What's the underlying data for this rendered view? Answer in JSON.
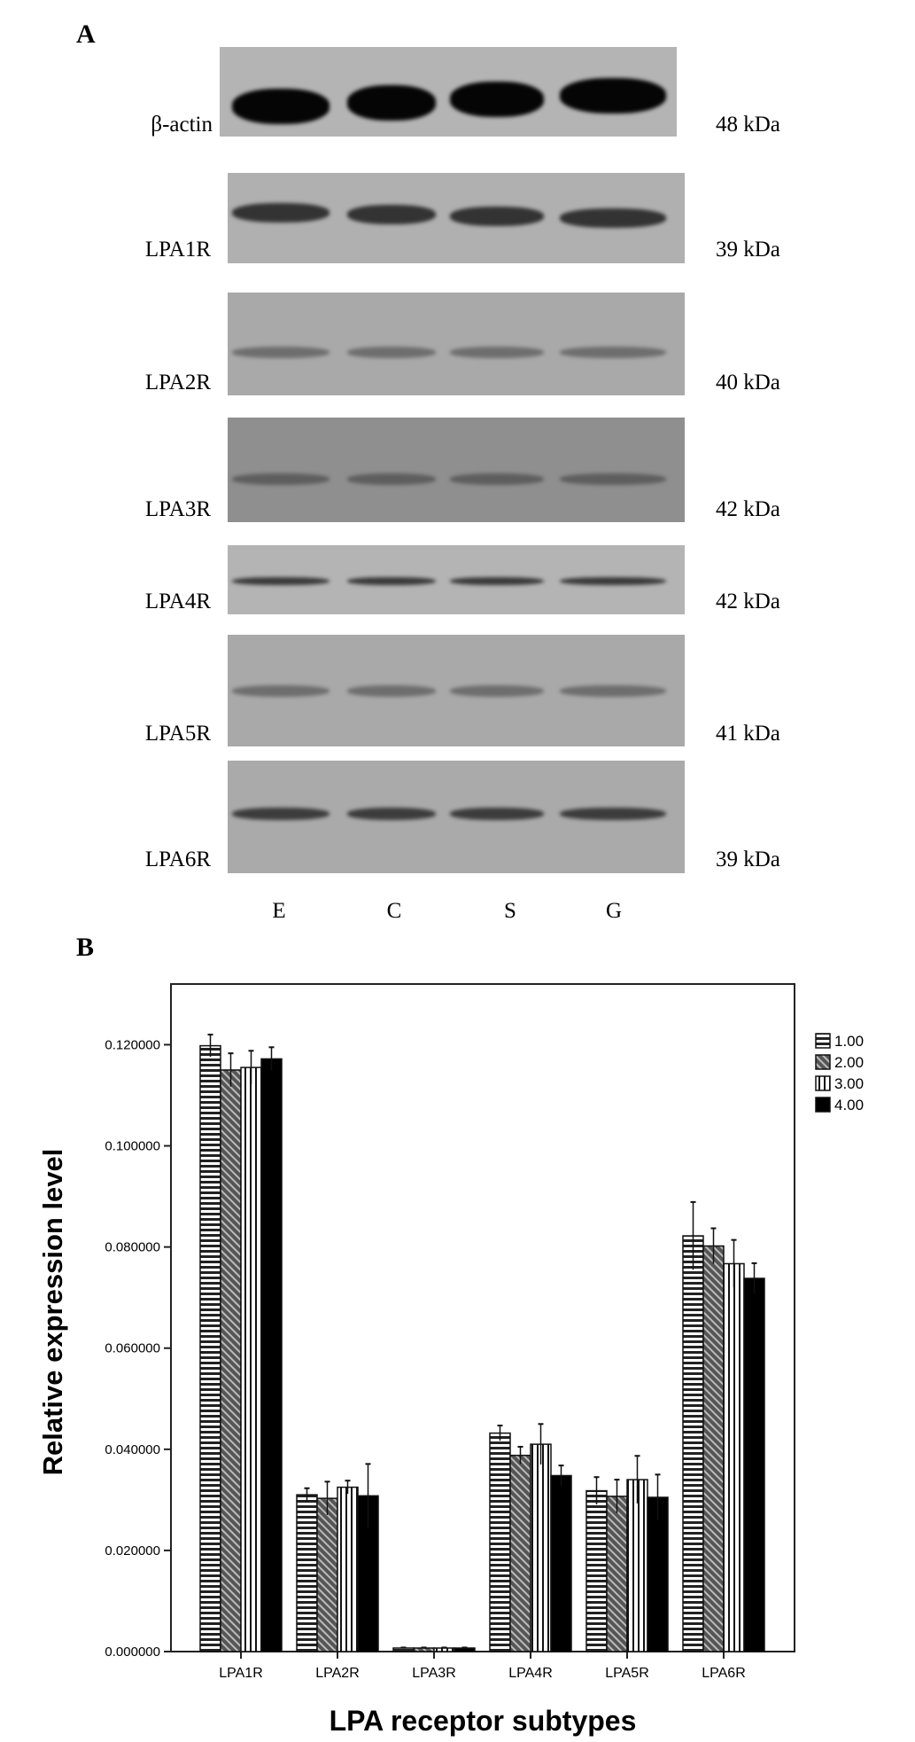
{
  "panel_a": {
    "letter": "A",
    "blots": [
      {
        "label": "β-actin",
        "kda": "48 kDa"
      },
      {
        "label": "LPA1R",
        "kda": "39 kDa"
      },
      {
        "label": "LPA2R",
        "kda": "40 kDa"
      },
      {
        "label": "LPA3R",
        "kda": "42 kDa"
      },
      {
        "label": "LPA4R",
        "kda": "42 kDa"
      },
      {
        "label": "LPA5R",
        "kda": "41 kDa"
      },
      {
        "label": "LPA6R",
        "kda": "39 kDa"
      }
    ],
    "lanes": [
      "E",
      "C",
      "S",
      "G"
    ]
  },
  "panel_b": {
    "letter": "B"
  },
  "chart_data": {
    "type": "bar",
    "title": "",
    "xlabel": "LPA receptor subtypes",
    "ylabel": "Relative expression level",
    "categories": [
      "LPA1R",
      "LPA2R",
      "LPA3R",
      "LPA4R",
      "LPA5R",
      "LPA6R"
    ],
    "ylim": [
      0,
      0.132
    ],
    "yticks": [
      "0.000000",
      "0.020000",
      "0.040000",
      "0.060000",
      "0.080000",
      "0.100000",
      "0.120000"
    ],
    "ytick_values": [
      0,
      0.02,
      0.04,
      0.06,
      0.08,
      0.1,
      0.12
    ],
    "grid": false,
    "legend_position": "right",
    "series": [
      {
        "name": "1.00",
        "pattern": "horizontal-lines",
        "values": [
          0.1198,
          0.031,
          0.0007,
          0.0432,
          0.0318,
          0.0822
        ],
        "errors": [
          0.0022,
          0.0013,
          0.0001,
          0.0015,
          0.0027,
          0.0067
        ]
      },
      {
        "name": "2.00",
        "pattern": "diagonal-hatch",
        "values": [
          0.115,
          0.0303,
          0.0007,
          0.0388,
          0.0307,
          0.0802
        ],
        "errors": [
          0.0033,
          0.0033,
          0.0001,
          0.0017,
          0.0033,
          0.0035
        ]
      },
      {
        "name": "3.00",
        "pattern": "vertical-lines",
        "values": [
          0.1155,
          0.0325,
          0.0007,
          0.041,
          0.034,
          0.0767
        ],
        "errors": [
          0.0033,
          0.0013,
          0.0001,
          0.004,
          0.0047,
          0.0047
        ]
      },
      {
        "name": "4.00",
        "pattern": "solid-black",
        "values": [
          0.1172,
          0.0308,
          0.0007,
          0.0348,
          0.0305,
          0.0738
        ],
        "errors": [
          0.0023,
          0.0063,
          0.0001,
          0.002,
          0.0045,
          0.003
        ]
      }
    ]
  }
}
